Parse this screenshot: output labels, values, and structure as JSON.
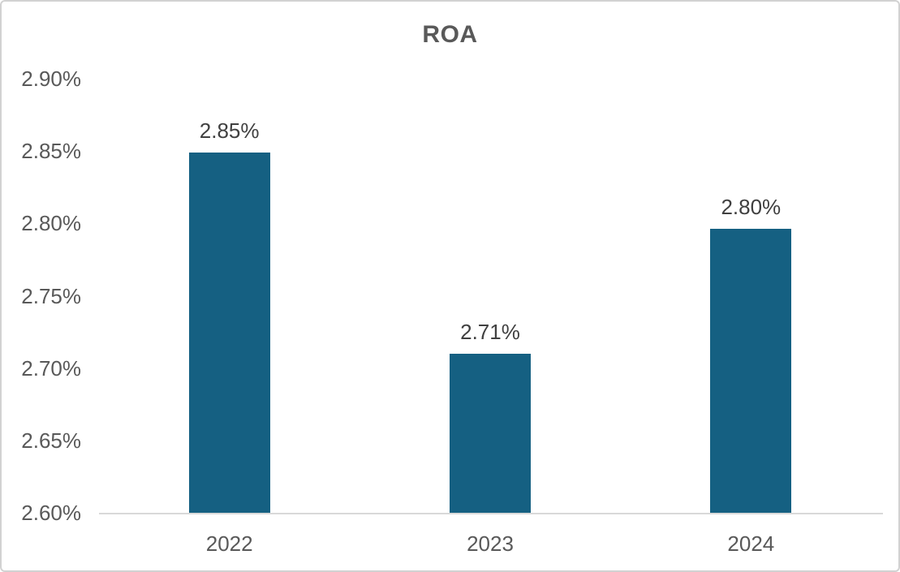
{
  "chart_data": {
    "type": "bar",
    "title": "ROA",
    "categories": [
      "2022",
      "2023",
      "2024"
    ],
    "values": [
      2.849,
      2.71,
      2.796
    ],
    "data_labels": [
      "2.85%",
      "2.71%",
      "2.80%"
    ],
    "xlabel": "",
    "ylabel": "",
    "ylim": [
      2.6,
      2.9
    ],
    "y_tick_values": [
      2.9,
      2.85,
      2.8,
      2.75,
      2.7,
      2.65,
      2.6
    ],
    "y_tick_labels": [
      "2.90%",
      "2.85%",
      "2.80%",
      "2.75%",
      "2.70%",
      "2.65%",
      "2.60%"
    ],
    "grid": false,
    "legend": false,
    "colors": {
      "bar": "#156082",
      "axis_line": "#d9d9d9",
      "tick_label": "#595959",
      "data_label": "#404040",
      "title": "#595959",
      "frame_border": "#d2d2d2",
      "background": "#ffffff"
    }
  }
}
